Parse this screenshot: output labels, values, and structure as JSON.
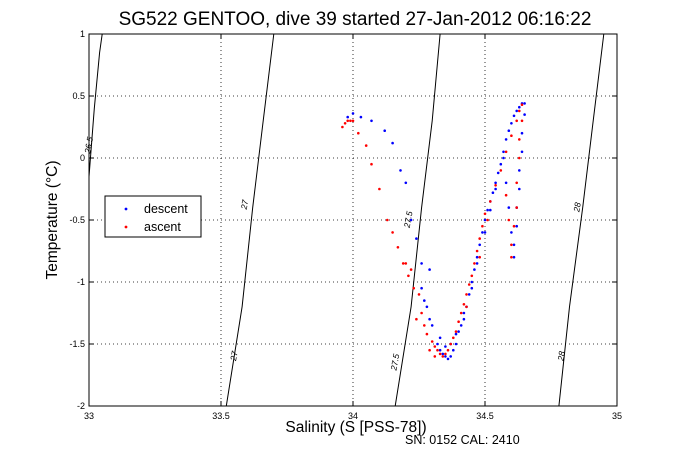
{
  "chart_data": {
    "type": "scatter",
    "title": "SG522 GENTOO, dive 39 started 27-Jan-2012 06:16:22",
    "xlabel": "Salinity (S [PSS-78])",
    "ylabel": "Temperature (°C)",
    "xlim": [
      33,
      35
    ],
    "ylim": [
      -2,
      1
    ],
    "x_ticks": [
      "33",
      "33.5",
      "34",
      "34.5",
      "35"
    ],
    "y_ticks": [
      "-2",
      "-1.5",
      "-1",
      "-0.5",
      "0",
      "0.5",
      "1"
    ],
    "grid": true,
    "legend_position": "left-middle",
    "footer": "SN: 0152  CAL: 2410",
    "colors": {
      "descent": "#0000ff",
      "ascent": "#ff0000",
      "contour": "#000000"
    },
    "contours": [
      {
        "label": "26.5",
        "points": [
          [
            33.0,
            -0.15
          ],
          [
            33.02,
            0.4
          ],
          [
            33.04,
            0.85
          ],
          [
            33.05,
            1.0
          ]
        ],
        "label_at": [
          33.01,
          0.1
        ]
      },
      {
        "label": "27",
        "points": [
          [
            33.52,
            -2.0
          ],
          [
            33.58,
            -1.2
          ],
          [
            33.62,
            -0.4
          ],
          [
            33.66,
            0.3
          ],
          [
            33.7,
            1.0
          ]
        ],
        "label_at": [
          33.56,
          -1.6
        ],
        "label2": "27",
        "label2_at": [
          33.6,
          -0.38
        ]
      },
      {
        "label": "27.5",
        "points": [
          [
            34.16,
            -2.0
          ],
          [
            34.22,
            -1.2
          ],
          [
            34.26,
            -0.4
          ],
          [
            34.3,
            0.3
          ],
          [
            34.33,
            1.0
          ]
        ],
        "label_at": [
          34.17,
          -1.65
        ],
        "label2": "27.5",
        "label2_at": [
          34.22,
          -0.5
        ]
      },
      {
        "label": "28",
        "points": [
          [
            34.78,
            -2.0
          ],
          [
            34.82,
            -1.2
          ],
          [
            34.87,
            -0.4
          ],
          [
            34.91,
            0.3
          ],
          [
            34.95,
            1.0
          ]
        ],
        "label_at": [
          34.8,
          -1.6
        ],
        "label2": "28",
        "label2_at": [
          34.86,
          -0.4
        ]
      }
    ],
    "series": [
      {
        "name": "descent",
        "points": [
          [
            33.98,
            0.33
          ],
          [
            34.0,
            0.36
          ],
          [
            34.03,
            0.33
          ],
          [
            34.07,
            0.3
          ],
          [
            34.12,
            0.22
          ],
          [
            34.15,
            0.12
          ],
          [
            34.18,
            -0.1
          ],
          [
            34.2,
            -0.2
          ],
          [
            34.22,
            -0.5
          ],
          [
            34.24,
            -0.65
          ],
          [
            34.26,
            -0.85
          ],
          [
            34.29,
            -0.9
          ],
          [
            34.26,
            -1.05
          ],
          [
            34.27,
            -1.15
          ],
          [
            34.28,
            -1.2
          ],
          [
            34.29,
            -1.3
          ],
          [
            34.3,
            -1.35
          ],
          [
            34.32,
            -1.5
          ],
          [
            34.33,
            -1.55
          ],
          [
            34.34,
            -1.58
          ],
          [
            34.35,
            -1.6
          ],
          [
            34.36,
            -1.62
          ],
          [
            34.37,
            -1.6
          ],
          [
            34.38,
            -1.55
          ],
          [
            34.39,
            -1.5
          ],
          [
            34.4,
            -1.4
          ],
          [
            34.41,
            -1.35
          ],
          [
            34.42,
            -1.3
          ],
          [
            34.43,
            -1.2
          ],
          [
            34.44,
            -1.1
          ],
          [
            34.45,
            -1.0
          ],
          [
            34.46,
            -0.9
          ],
          [
            34.47,
            -0.8
          ],
          [
            34.48,
            -0.7
          ],
          [
            34.49,
            -0.6
          ],
          [
            34.5,
            -0.5
          ],
          [
            34.51,
            -0.42
          ],
          [
            34.52,
            -0.35
          ],
          [
            34.53,
            -0.28
          ],
          [
            34.54,
            -0.2
          ],
          [
            34.55,
            -0.12
          ],
          [
            34.56,
            -0.05
          ],
          [
            34.57,
            0.05
          ],
          [
            34.58,
            0.15
          ],
          [
            34.59,
            0.22
          ],
          [
            34.6,
            0.28
          ],
          [
            34.61,
            0.34
          ],
          [
            34.62,
            0.38
          ],
          [
            34.63,
            0.41
          ],
          [
            34.64,
            0.44
          ],
          [
            34.65,
            0.44
          ],
          [
            34.65,
            0.35
          ],
          [
            34.64,
            0.2
          ],
          [
            34.64,
            0.05
          ],
          [
            34.63,
            -0.1
          ],
          [
            34.63,
            -0.25
          ],
          [
            34.62,
            -0.4
          ],
          [
            34.62,
            -0.55
          ],
          [
            34.61,
            -0.7
          ],
          [
            34.61,
            -0.8
          ],
          [
            34.6,
            -0.6
          ],
          [
            34.59,
            -0.4
          ],
          [
            34.58,
            -0.2
          ],
          [
            34.57,
            0.0
          ],
          [
            34.33,
            -1.45
          ],
          [
            34.35,
            -1.52
          ],
          [
            34.37,
            -1.5
          ],
          [
            34.39,
            -1.42
          ],
          [
            34.42,
            -1.25
          ],
          [
            34.45,
            -1.05
          ],
          [
            34.47,
            -0.85
          ],
          [
            34.5,
            -0.6
          ],
          [
            34.52,
            -0.42
          ],
          [
            34.54,
            -0.25
          ]
        ]
      },
      {
        "name": "ascent",
        "points": [
          [
            33.96,
            0.25
          ],
          [
            33.97,
            0.28
          ],
          [
            33.98,
            0.3
          ],
          [
            33.99,
            0.3
          ],
          [
            34.0,
            0.3
          ],
          [
            34.02,
            0.2
          ],
          [
            34.05,
            0.1
          ],
          [
            34.07,
            -0.05
          ],
          [
            34.1,
            -0.25
          ],
          [
            34.13,
            -0.5
          ],
          [
            34.15,
            -0.6
          ],
          [
            34.17,
            -0.72
          ],
          [
            34.19,
            -0.85
          ],
          [
            34.21,
            -0.95
          ],
          [
            34.23,
            -1.05
          ],
          [
            34.25,
            -1.1
          ],
          [
            34.26,
            -1.25
          ],
          [
            34.27,
            -1.35
          ],
          [
            34.28,
            -1.42
          ],
          [
            34.3,
            -1.48
          ],
          [
            34.31,
            -1.52
          ],
          [
            34.32,
            -1.55
          ],
          [
            34.33,
            -1.58
          ],
          [
            34.34,
            -1.6
          ],
          [
            34.35,
            -1.58
          ],
          [
            34.36,
            -1.55
          ],
          [
            34.37,
            -1.5
          ],
          [
            34.38,
            -1.45
          ],
          [
            34.39,
            -1.4
          ],
          [
            34.4,
            -1.32
          ],
          [
            34.41,
            -1.25
          ],
          [
            34.42,
            -1.18
          ],
          [
            34.43,
            -1.1
          ],
          [
            34.44,
            -1.02
          ],
          [
            34.45,
            -0.95
          ],
          [
            34.46,
            -0.85
          ],
          [
            34.47,
            -0.75
          ],
          [
            34.48,
            -0.65
          ],
          [
            34.49,
            -0.55
          ],
          [
            34.5,
            -0.45
          ],
          [
            34.52,
            -0.35
          ],
          [
            34.54,
            -0.22
          ],
          [
            34.56,
            -0.1
          ],
          [
            34.58,
            0.05
          ],
          [
            34.6,
            0.18
          ],
          [
            34.62,
            0.3
          ],
          [
            34.63,
            0.38
          ],
          [
            34.64,
            0.43
          ],
          [
            34.64,
            0.3
          ],
          [
            34.63,
            0.15
          ],
          [
            34.63,
            0.0
          ],
          [
            34.62,
            -0.2
          ],
          [
            34.62,
            -0.4
          ],
          [
            34.61,
            -0.55
          ],
          [
            34.6,
            -0.7
          ],
          [
            34.6,
            -0.8
          ],
          [
            34.59,
            -0.5
          ],
          [
            34.58,
            -0.3
          ],
          [
            34.2,
            -0.85
          ],
          [
            34.22,
            -0.9
          ],
          [
            34.24,
            -1.3
          ],
          [
            34.29,
            -1.55
          ],
          [
            34.31,
            -1.6
          ],
          [
            34.43,
            -1.2
          ],
          [
            34.48,
            -0.8
          ],
          [
            34.51,
            -0.5
          ]
        ]
      }
    ]
  }
}
